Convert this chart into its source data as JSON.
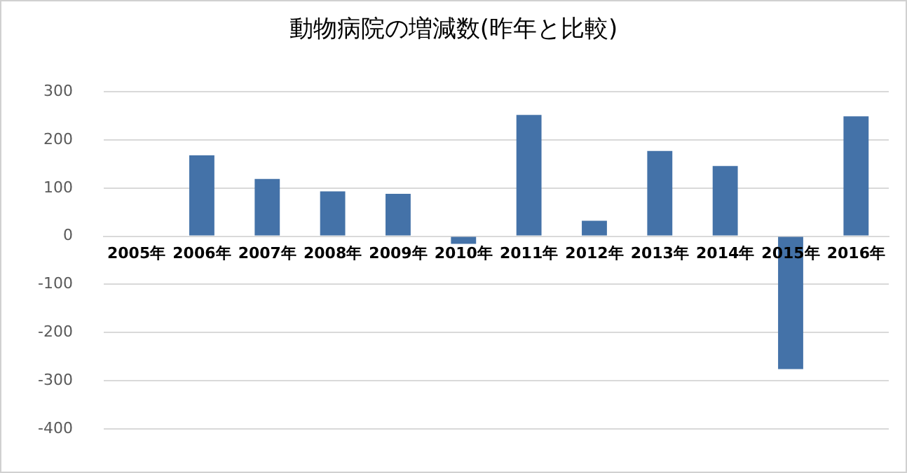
{
  "chart_data": {
    "type": "bar",
    "title": "動物病院の増減数(昨年と比較)",
    "categories": [
      "2005年",
      "2006年",
      "2007年",
      "2008年",
      "2009年",
      "2010年",
      "2011年",
      "2012年",
      "2013年",
      "2014年",
      "2015年",
      "2016年"
    ],
    "values": [
      null,
      168,
      119,
      93,
      88,
      -16,
      252,
      32,
      177,
      146,
      -276,
      249
    ],
    "color": "#4472a8",
    "ylim": [
      -400,
      300
    ],
    "yticks": [
      -400,
      -300,
      -200,
      -100,
      0,
      100,
      200,
      300
    ],
    "grid": "y"
  }
}
